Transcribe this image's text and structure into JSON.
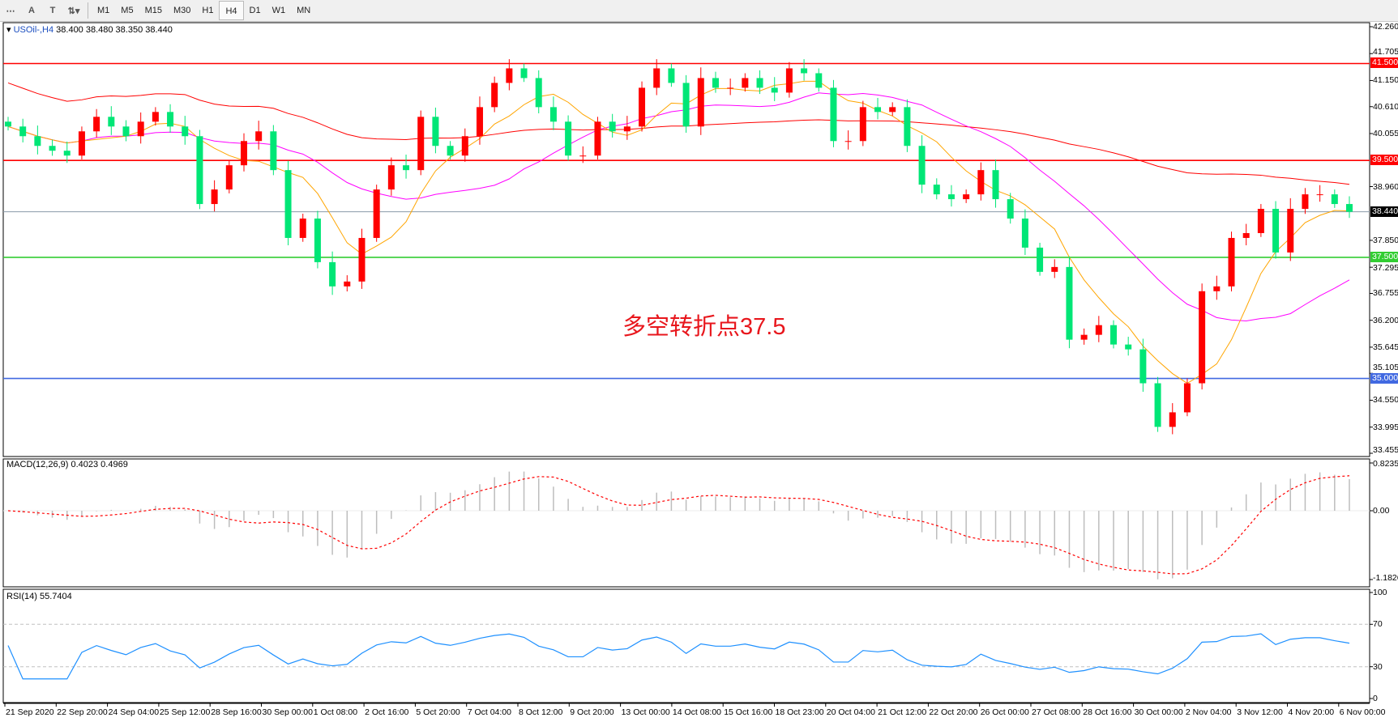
{
  "toolbar": {
    "icons": [
      "grid-f-icon",
      "text-a-icon",
      "text-label-icon",
      "arrows-icon"
    ],
    "timeframes": [
      "M1",
      "M5",
      "M15",
      "M30",
      "H1",
      "H4",
      "D1",
      "W1",
      "MN"
    ],
    "active": "H4"
  },
  "chart": {
    "symbol": "USOil-,H4",
    "ohlc": "38.400 38.480 38.350 38.440",
    "annotation": "多空转折点37.5",
    "colors": {
      "bull": "#ff0000",
      "bear": "#00e676",
      "ma_fast": "#ffa500",
      "ma_mid": "#ff00ff",
      "ma_slow": "#ff0000"
    },
    "levels": [
      {
        "price": 41.5,
        "label": "41.500",
        "color": "#ff0000"
      },
      {
        "price": 39.5,
        "label": "39.500",
        "color": "#ff0000"
      },
      {
        "price": 37.5,
        "label": "37.500",
        "color": "#32cd32"
      },
      {
        "price": 35.0,
        "label": "35.000",
        "color": "#4169e1"
      }
    ],
    "current": {
      "price": 38.44,
      "label": "38.440"
    },
    "price_ticks": [
      "42.260",
      "41.705",
      "41.150",
      "40.610",
      "40.055",
      "38.960",
      "37.850",
      "37.295",
      "36.755",
      "36.200",
      "35.645",
      "35.105",
      "34.550",
      "33.995",
      "33.455"
    ],
    "closes": [
      40.2,
      40.0,
      39.8,
      39.7,
      39.6,
      40.1,
      40.4,
      40.2,
      40.0,
      40.3,
      40.5,
      40.2,
      40.0,
      38.6,
      38.9,
      39.4,
      39.9,
      40.1,
      39.3,
      37.9,
      38.3,
      37.4,
      36.9,
      37.0,
      37.9,
      38.9,
      39.4,
      39.3,
      40.4,
      39.8,
      39.6,
      40.0,
      40.6,
      41.1,
      41.4,
      41.2,
      40.6,
      40.3,
      39.6,
      39.6,
      40.3,
      40.1,
      40.2,
      41.0,
      41.4,
      41.1,
      40.2,
      41.2,
      41.0,
      41.0,
      41.2,
      41.0,
      40.9,
      41.4,
      41.3,
      41.0,
      39.9,
      39.9,
      40.6,
      40.5,
      40.6,
      39.8,
      39.0,
      38.8,
      38.7,
      38.8,
      39.3,
      38.7,
      38.3,
      37.7,
      37.2,
      37.3,
      35.8,
      35.9,
      36.1,
      35.7,
      35.6,
      34.9,
      34.0,
      34.3,
      34.9,
      36.8,
      36.9,
      37.9,
      38.0,
      38.5,
      37.6,
      38.5,
      38.8,
      38.8,
      38.6,
      38.44
    ]
  },
  "macd": {
    "label": "MACD(12,26,9) 0.4023 0.4969",
    "ticks": [
      "0.8235",
      "0.00",
      "-1.1826"
    ]
  },
  "rsi": {
    "label": "RSI(14) 55.7404",
    "ticks": [
      "100",
      "70",
      "30",
      "0"
    ]
  },
  "x_labels": [
    "21 Sep 2020",
    "22 Sep 20:00",
    "24 Sep 04:00",
    "25 Sep 12:00",
    "28 Sep 16:00",
    "30 Sep 00:00",
    "1 Oct 08:00",
    "2 Oct 16:00",
    "5 Oct 20:00",
    "7 Oct 04:00",
    "8 Oct 12:00",
    "9 Oct 20:00",
    "13 Oct 00:00",
    "14 Oct 08:00",
    "15 Oct 16:00",
    "18 Oct 23:00",
    "20 Oct 04:00",
    "21 Oct 12:00",
    "22 Oct 20:00",
    "26 Oct 00:00",
    "27 Oct 08:00",
    "28 Oct 16:00",
    "30 Oct 00:00",
    "2 Nov 04:00",
    "3 Nov 12:00",
    "4 Nov 20:00",
    "6 Nov 00:00"
  ]
}
